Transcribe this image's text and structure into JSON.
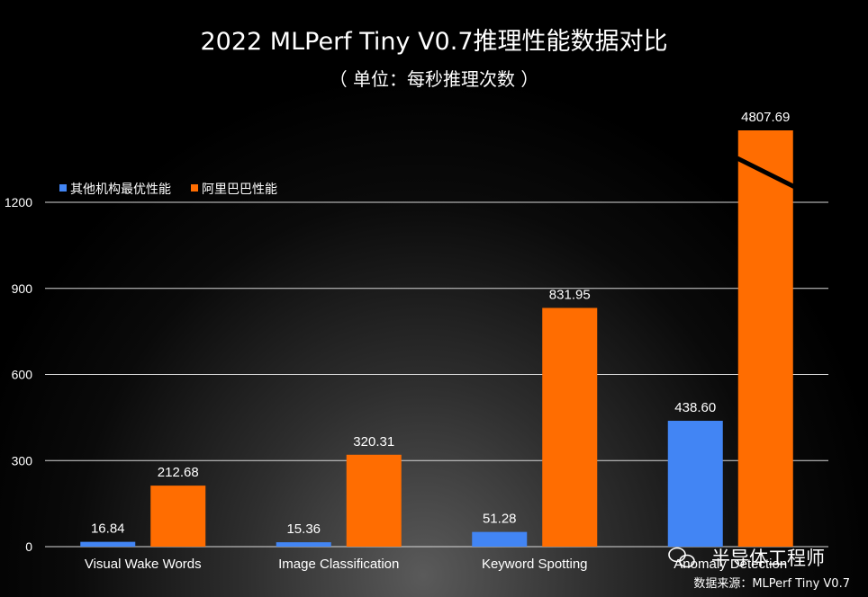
{
  "chart_data": {
    "type": "bar",
    "title": "2022 MLPerf Tiny V0.7推理性能数据对比",
    "subtitle": "（ 单位：每秒推理次数 ）",
    "categories": [
      "Visual Wake Words",
      "Image Classification",
      "Keyword Spotting",
      "Anomaly Detection"
    ],
    "series": [
      {
        "name": "其他机构最优性能",
        "color": "#4285f4",
        "values": [
          16.84,
          15.36,
          51.28,
          438.6
        ],
        "labels": [
          "16.84",
          "15.36",
          "51.28",
          "438.60"
        ]
      },
      {
        "name": "阿里巴巴性能",
        "color": "#ff6d01",
        "values": [
          212.68,
          320.31,
          831.95,
          4807.69
        ],
        "labels": [
          "212.68",
          "320.31",
          "831.95",
          "4807.69"
        ]
      }
    ],
    "yticks": [
      0,
      300,
      600,
      900,
      1200
    ],
    "ylim": [
      0,
      1200
    ],
    "axis_break": true,
    "grid": true,
    "legend_position": "top-left"
  },
  "source_note": "数据来源：MLPerf Tiny V0.7",
  "watermark": "半导体工程师"
}
